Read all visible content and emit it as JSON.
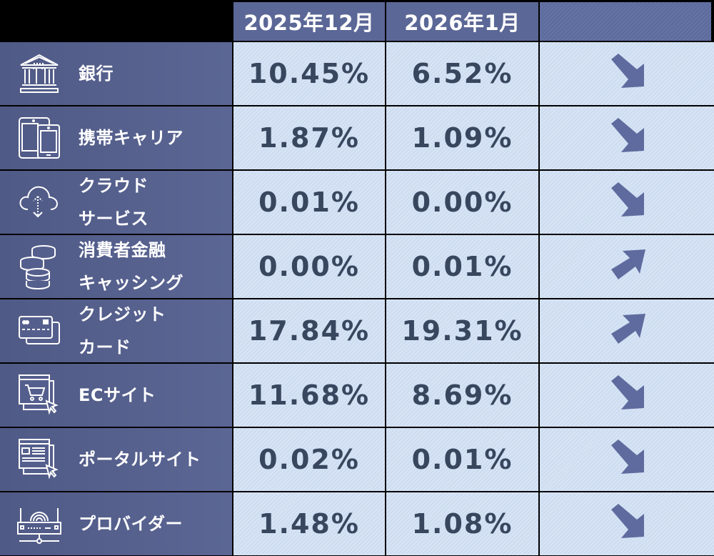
{
  "header": {
    "col1": "2025年12月",
    "col2": "2026年1月",
    "col3": ""
  },
  "colors": {
    "label_bg": "#555f8d",
    "header_bg": "#5b6796",
    "cell_bg": "#d3e1f3",
    "value_text": "#38475e",
    "arrow": "#5f6b9e"
  },
  "rows": [
    {
      "icon": "bank-icon",
      "line1": "銀行",
      "line2": "",
      "v2025_12": "10.45%",
      "v2026_01": "6.52%",
      "trend": "down"
    },
    {
      "icon": "mobile-devices-icon",
      "line1": "携帯キャリア",
      "line2": "",
      "v2025_12": "1.87%",
      "v2026_01": "1.09%",
      "trend": "down"
    },
    {
      "icon": "cloud-transfer-icon",
      "line1": "クラウド",
      "line2": "サービス",
      "v2025_12": "0.01%",
      "v2026_01": "0.00%",
      "trend": "down"
    },
    {
      "icon": "coins-icon",
      "line1": "消費者金融",
      "line2": "キャッシング",
      "v2025_12": "0.00%",
      "v2026_01": "0.01%",
      "trend": "up"
    },
    {
      "icon": "credit-card-icon",
      "line1": "クレジット",
      "line2": "カード",
      "v2025_12": "17.84%",
      "v2026_01": "19.31%",
      "trend": "up"
    },
    {
      "icon": "shopping-cart-window-icon",
      "line1": "ECサイト",
      "line2": "",
      "v2025_12": "11.68%",
      "v2026_01": "8.69%",
      "trend": "down"
    },
    {
      "icon": "portal-window-icon",
      "line1": "ポータルサイト",
      "line2": "",
      "v2025_12": "0.02%",
      "v2026_01": "0.01%",
      "trend": "down"
    },
    {
      "icon": "router-icon",
      "line1": "プロバイダー",
      "line2": "",
      "v2025_12": "1.48%",
      "v2026_01": "1.08%",
      "trend": "down"
    }
  ]
}
